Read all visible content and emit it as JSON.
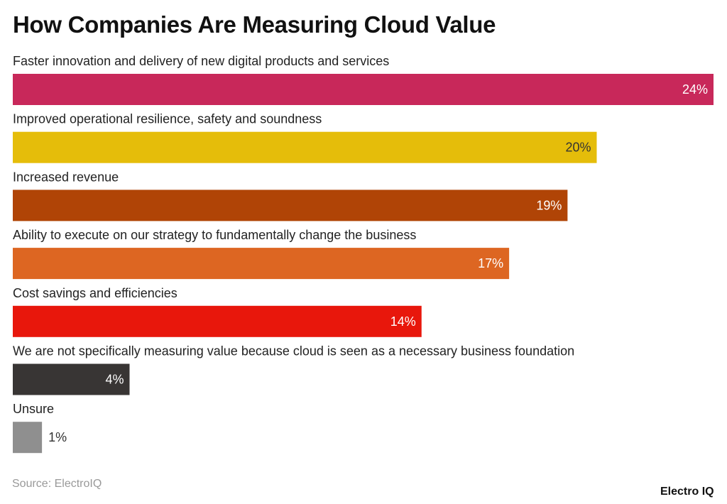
{
  "chart_data": {
    "type": "bar",
    "orientation": "horizontal",
    "title": "How Companies Are Measuring Cloud Value",
    "categories": [
      "Faster innovation and delivery of new digital products and services",
      "Improved operational resilience, safety and soundness",
      "Increased revenue",
      "Ability to execute on our strategy to fundamentally change the business",
      "Cost savings and efficiencies",
      "We are not specifically measuring value because cloud is seen as a necessary business foundation",
      "Unsure"
    ],
    "values": [
      24,
      20,
      19,
      17,
      14,
      4,
      1
    ],
    "value_labels": [
      "24%",
      "20%",
      "19%",
      "17%",
      "14%",
      "4%",
      "1%"
    ],
    "colors": [
      "#C8285A",
      "#E5BD0A",
      "#B04406",
      "#DD6622",
      "#E8170C",
      "#383534",
      "#8F8F8F"
    ],
    "xlim": [
      0,
      24
    ],
    "grid": false,
    "legend": "none"
  },
  "source": "Source: ElectroIQ",
  "logo": "Electro IQ"
}
